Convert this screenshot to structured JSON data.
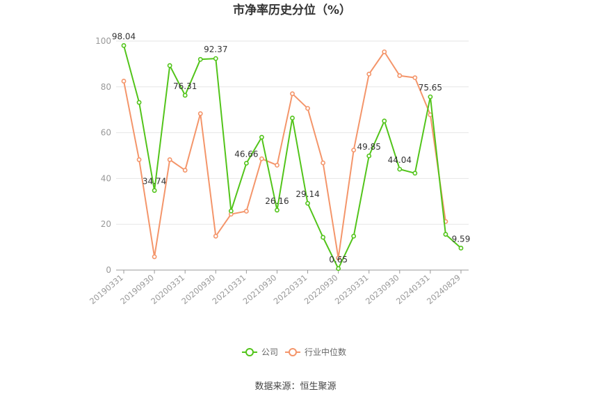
{
  "chart_data": {
    "type": "line",
    "title": "市净率历史分位（%）",
    "ylim": [
      0,
      100
    ],
    "yticks": [
      0,
      20,
      40,
      60,
      80,
      100
    ],
    "grid": true,
    "legend_position": "bottom-center",
    "x": [
      "20190331",
      "",
      "20190930",
      "",
      "20200331",
      "",
      "20200930",
      "",
      "20210331",
      "",
      "20210930",
      "",
      "20220331",
      "",
      "20220930",
      "",
      "20230331",
      "",
      "20230930",
      "",
      "20240331",
      "",
      "20240829"
    ],
    "xtick_labels": [
      "20190331",
      "20190930",
      "20200331",
      "20200930",
      "20210331",
      "20210930",
      "20220331",
      "20220930",
      "20230331",
      "20230930",
      "20240331",
      "20240829"
    ],
    "series": [
      {
        "name": "公司",
        "color": "#52c41a",
        "values": [
          98.04,
          73.2,
          34.74,
          89.3,
          76.31,
          92.0,
          92.37,
          25.8,
          46.66,
          58.0,
          26.16,
          66.4,
          29.14,
          14.3,
          0.65,
          14.8,
          49.85,
          65.1,
          44.04,
          42.3,
          75.65,
          15.6,
          9.59
        ],
        "labels": {
          "0": "98.04",
          "2": "34.74",
          "4": "76.31",
          "6": "92.37",
          "8": "46.66",
          "10": "26.16",
          "12": "29.14",
          "14": "0.65",
          "16": "49.85",
          "18": "44.04",
          "20": "75.65",
          "22": "9.59"
        }
      },
      {
        "name": "行业中位数",
        "color": "#f4956a",
        "values": [
          82.5,
          48.2,
          5.8,
          48.2,
          43.6,
          68.3,
          14.8,
          24.4,
          25.7,
          48.6,
          45.8,
          77.0,
          70.6,
          46.8,
          5.3,
          52.4,
          85.6,
          95.3,
          84.9,
          84.0,
          67.8,
          21.2,
          null
        ]
      }
    ]
  },
  "source": "数据来源：恒生聚源"
}
